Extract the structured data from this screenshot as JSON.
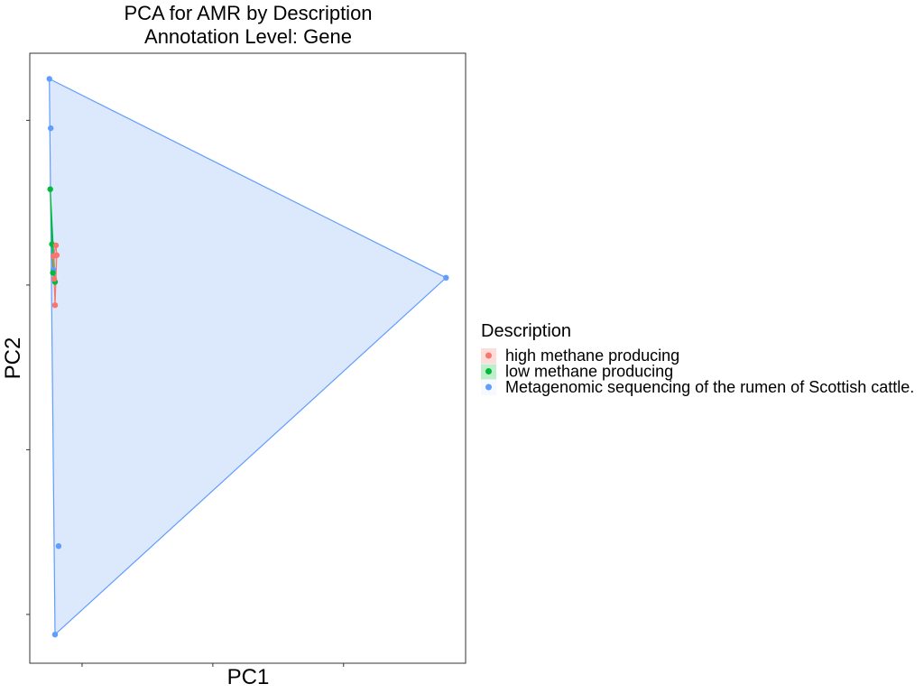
{
  "chart_data": {
    "type": "scatter",
    "title": "PCA for AMR by Description",
    "subtitle": "Annotation Level: Gene",
    "xlabel": "PC1",
    "ylabel": "PC2",
    "xlim": [
      0,
      100
    ],
    "ylim": [
      0,
      100
    ],
    "x_ticks": [
      12,
      42,
      72
    ],
    "y_ticks": [
      8,
      35,
      62,
      89
    ],
    "grid": false,
    "hulls": true,
    "legend": {
      "title": "Description",
      "placement": "right"
    },
    "series": [
      {
        "name": "high methane producing",
        "color": "#F8766D",
        "fill": "#F8766D",
        "points": [
          {
            "x": 6.0,
            "y": 68.5
          },
          {
            "x": 6.2,
            "y": 66.9
          },
          {
            "x": 5.4,
            "y": 66.7
          },
          {
            "x": 5.6,
            "y": 63.0
          },
          {
            "x": 5.8,
            "y": 58.7
          }
        ]
      },
      {
        "name": "low methane producing",
        "color": "#00BA38",
        "fill": "#00BA38",
        "points": [
          {
            "x": 4.7,
            "y": 77.7
          },
          {
            "x": 5.1,
            "y": 68.7
          },
          {
            "x": 5.8,
            "y": 62.5
          },
          {
            "x": 5.3,
            "y": 64.0
          }
        ]
      },
      {
        "name": "Metagenomic sequencing of the rumen of Scottish cattle.",
        "color": "#619CFF",
        "fill": "#DCE9FC",
        "points": [
          {
            "x": 4.5,
            "y": 95.8
          },
          {
            "x": 4.8,
            "y": 87.7
          },
          {
            "x": 95.5,
            "y": 63.2
          },
          {
            "x": 6.6,
            "y": 19.2
          },
          {
            "x": 5.8,
            "y": 4.7
          },
          {
            "x": 5.4,
            "y": 64.5
          }
        ]
      }
    ]
  }
}
